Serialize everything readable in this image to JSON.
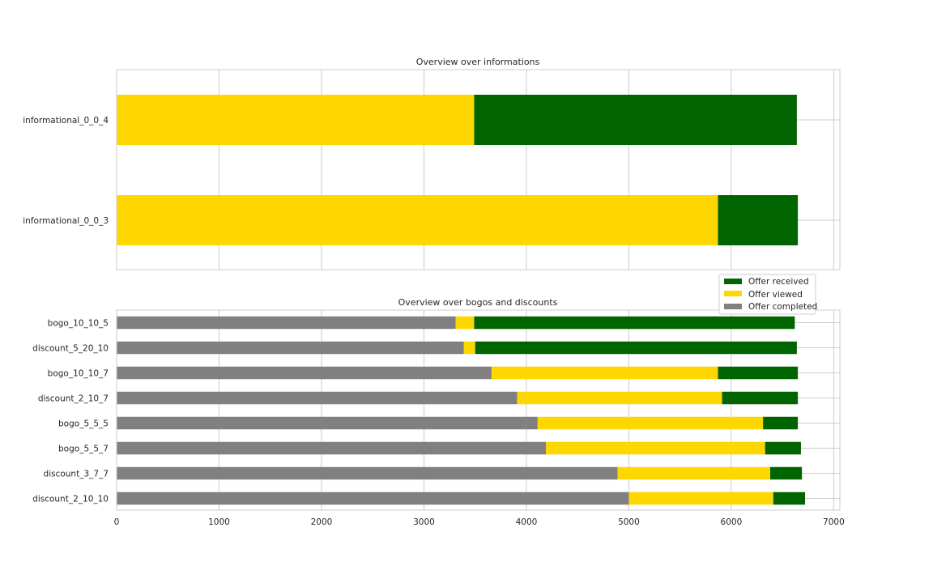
{
  "chart_data": [
    {
      "type": "bar",
      "orientation": "horizontal",
      "stacked": true,
      "title": "Overview over informations",
      "categories": [
        "informational_0_0_4",
        "informational_0_0_3"
      ],
      "series": [
        {
          "name": "Offer viewed",
          "color": "#FFD700",
          "values": [
            3490,
            5870
          ]
        },
        {
          "name": "Offer received",
          "color": "#006400",
          "values": [
            3150,
            780
          ]
        }
      ],
      "xlim": [
        0,
        7060
      ],
      "grid": true
    },
    {
      "type": "bar",
      "orientation": "horizontal",
      "stacked": true,
      "title": "Overview over bogos and discounts",
      "categories": [
        "bogo_10_10_5",
        "discount_5_20_10",
        "bogo_10_10_7",
        "discount_2_10_7",
        "bogo_5_5_5",
        "bogo_5_5_7",
        "discount_3_7_7",
        "discount_2_10_10"
      ],
      "series": [
        {
          "name": "Offer completed",
          "color": "#808080",
          "values": [
            3310,
            3390,
            3660,
            3910,
            4110,
            4190,
            4890,
            5000
          ]
        },
        {
          "name": "Offer viewed",
          "color": "#FFD700",
          "values": [
            180,
            110,
            2210,
            2000,
            2200,
            2140,
            1490,
            1410
          ]
        },
        {
          "name": "Offer received",
          "color": "#006400",
          "values": [
            3130,
            3140,
            780,
            740,
            340,
            350,
            310,
            310
          ]
        }
      ],
      "xlim": [
        0,
        7060
      ],
      "xticks": [
        "0",
        "1000",
        "2000",
        "3000",
        "4000",
        "5000",
        "6000",
        "7000"
      ],
      "grid": true,
      "legend": {
        "placement": "upper-right",
        "entries": [
          {
            "label": "Offer received",
            "color": "#006400"
          },
          {
            "label": "Offer viewed",
            "color": "#FFD700"
          },
          {
            "label": "Offer completed",
            "color": "#808080"
          }
        ]
      }
    }
  ]
}
